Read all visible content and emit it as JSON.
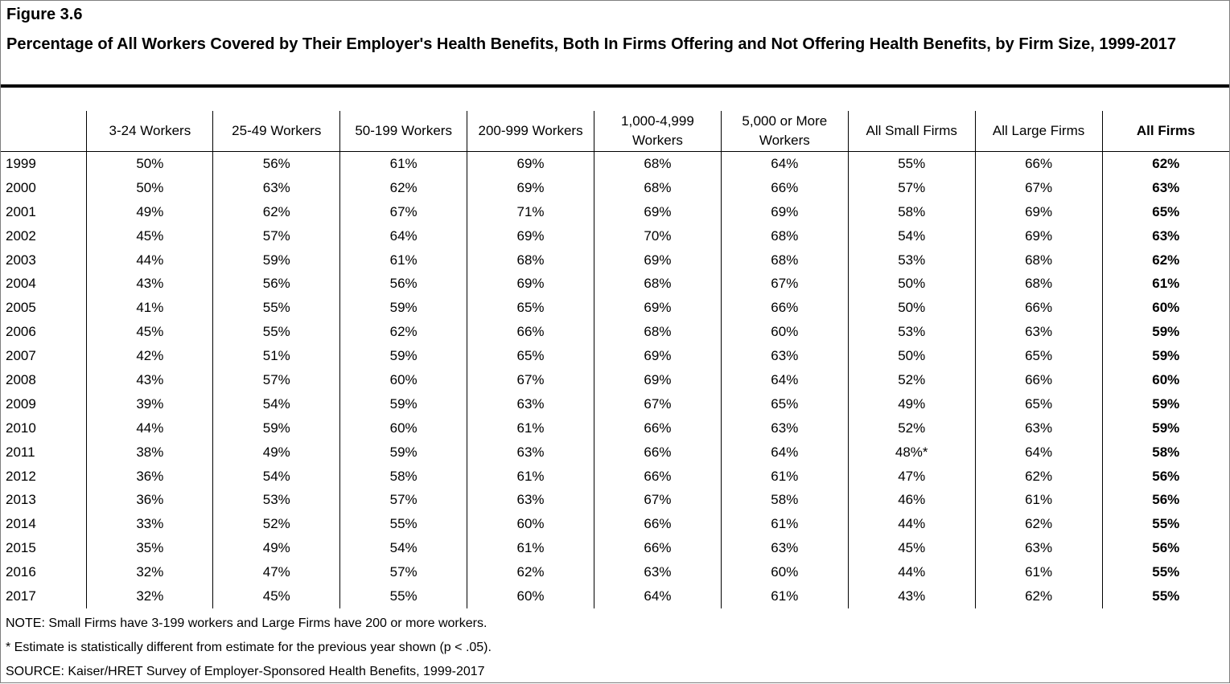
{
  "figure_label": "Figure 3.6",
  "title": "Percentage of All Workers Covered by Their Employer's Health Benefits, Both In Firms Offering and Not Offering Health Benefits, by Firm Size, 1999-2017",
  "chart_data": {
    "type": "table",
    "columns": [
      "",
      "3-24 Workers",
      "25-49 Workers",
      "50-199 Workers",
      "200-999 Workers",
      "1,000-4,999 Workers",
      "5,000 or More Workers",
      "All Small Firms",
      "All Large Firms",
      "All Firms"
    ],
    "bold_columns": [
      "All Firms"
    ],
    "rows": [
      [
        "1999",
        "50%",
        "56%",
        "61%",
        "69%",
        "68%",
        "64%",
        "55%",
        "66%",
        "62%"
      ],
      [
        "2000",
        "50%",
        "63%",
        "62%",
        "69%",
        "68%",
        "66%",
        "57%",
        "67%",
        "63%"
      ],
      [
        "2001",
        "49%",
        "62%",
        "67%",
        "71%",
        "69%",
        "69%",
        "58%",
        "69%",
        "65%"
      ],
      [
        "2002",
        "45%",
        "57%",
        "64%",
        "69%",
        "70%",
        "68%",
        "54%",
        "69%",
        "63%"
      ],
      [
        "2003",
        "44%",
        "59%",
        "61%",
        "68%",
        "69%",
        "68%",
        "53%",
        "68%",
        "62%"
      ],
      [
        "2004",
        "43%",
        "56%",
        "56%",
        "69%",
        "68%",
        "67%",
        "50%",
        "68%",
        "61%"
      ],
      [
        "2005",
        "41%",
        "55%",
        "59%",
        "65%",
        "69%",
        "66%",
        "50%",
        "66%",
        "60%"
      ],
      [
        "2006",
        "45%",
        "55%",
        "62%",
        "66%",
        "68%",
        "60%",
        "53%",
        "63%",
        "59%"
      ],
      [
        "2007",
        "42%",
        "51%",
        "59%",
        "65%",
        "69%",
        "63%",
        "50%",
        "65%",
        "59%"
      ],
      [
        "2008",
        "43%",
        "57%",
        "60%",
        "67%",
        "69%",
        "64%",
        "52%",
        "66%",
        "60%"
      ],
      [
        "2009",
        "39%",
        "54%",
        "59%",
        "63%",
        "67%",
        "65%",
        "49%",
        "65%",
        "59%"
      ],
      [
        "2010",
        "44%",
        "59%",
        "60%",
        "61%",
        "66%",
        "63%",
        "52%",
        "63%",
        "59%"
      ],
      [
        "2011",
        "38%",
        "49%",
        "59%",
        "63%",
        "66%",
        "64%",
        "48%*",
        "64%",
        "58%"
      ],
      [
        "2012",
        "36%",
        "54%",
        "58%",
        "61%",
        "66%",
        "61%",
        "47%",
        "62%",
        "56%"
      ],
      [
        "2013",
        "36%",
        "53%",
        "57%",
        "63%",
        "67%",
        "58%",
        "46%",
        "61%",
        "56%"
      ],
      [
        "2014",
        "33%",
        "52%",
        "55%",
        "60%",
        "66%",
        "61%",
        "44%",
        "62%",
        "55%"
      ],
      [
        "2015",
        "35%",
        "49%",
        "54%",
        "61%",
        "66%",
        "63%",
        "45%",
        "63%",
        "56%"
      ],
      [
        "2016",
        "32%",
        "47%",
        "57%",
        "62%",
        "63%",
        "60%",
        "44%",
        "61%",
        "55%"
      ],
      [
        "2017",
        "32%",
        "45%",
        "55%",
        "60%",
        "64%",
        "61%",
        "43%",
        "62%",
        "55%"
      ]
    ]
  },
  "notes": [
    "NOTE: Small Firms have 3-199 workers and Large Firms have 200 or more workers.",
    " * Estimate is statistically different from estimate for the previous year shown (p < .05).",
    "SOURCE: Kaiser/HRET Survey of Employer-Sponsored Health Benefits, 1999-2017"
  ]
}
